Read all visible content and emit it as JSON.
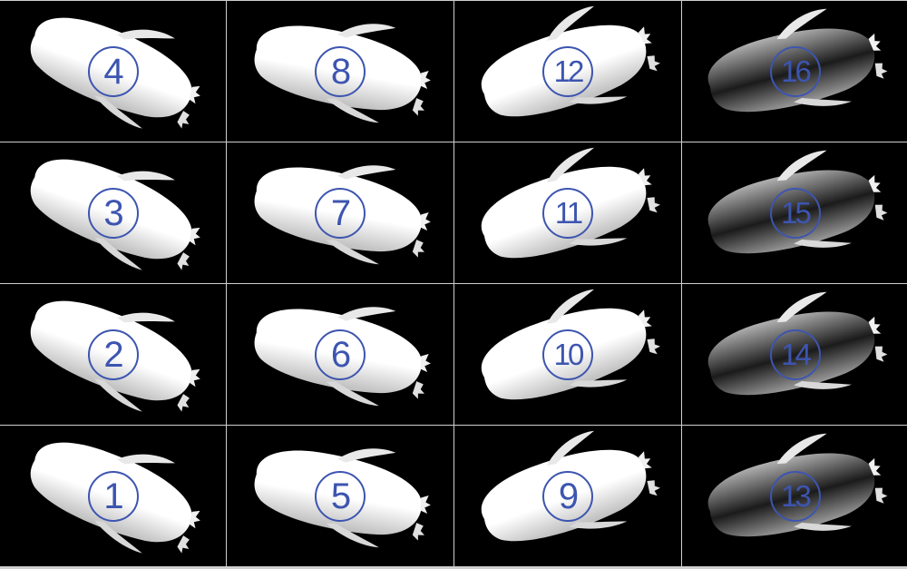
{
  "figure": {
    "panels": [
      {
        "label": "4"
      },
      {
        "label": "8"
      },
      {
        "label": "12"
      },
      {
        "label": "16"
      },
      {
        "label": "3"
      },
      {
        "label": "7"
      },
      {
        "label": "11"
      },
      {
        "label": "15"
      },
      {
        "label": "2"
      },
      {
        "label": "6"
      },
      {
        "label": "10"
      },
      {
        "label": "14"
      },
      {
        "label": "1"
      },
      {
        "label": "5"
      },
      {
        "label": "9"
      },
      {
        "label": "13"
      }
    ],
    "colors": {
      "background": "#000000",
      "grid_lines": "#cfcfcf",
      "label": "#3d55b0",
      "body_light": "#ffffff",
      "body_dark": "#3a3a3a"
    }
  }
}
